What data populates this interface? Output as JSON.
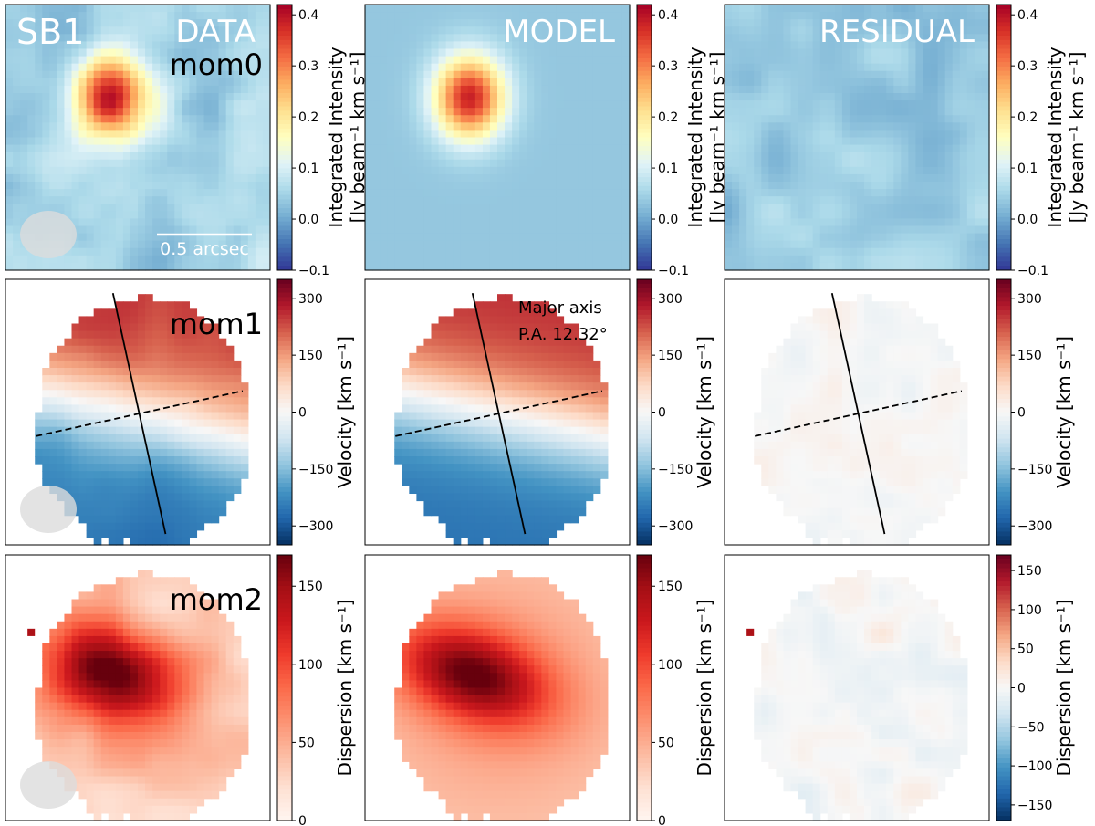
{
  "chart_data": {
    "type": "heatmap",
    "source_label": "SB1",
    "columns": [
      "DATA",
      "MODEL",
      "RESIDUAL"
    ],
    "rows": [
      {
        "moment": "mom0",
        "colorbar_label_line1": "Integrated Intensity",
        "colorbar_label_line2": "[Jy beam⁻¹ km s⁻¹]",
        "colormap": "RdYlBu_r",
        "vmin": -0.1,
        "vmax": 0.42,
        "ticks": [
          -0.1,
          0.0,
          0.1,
          0.2,
          0.3,
          0.4
        ],
        "tick_labels": [
          "−0.1",
          "0.0",
          "0.1",
          "0.2",
          "0.3",
          "0.4"
        ],
        "data_peak": 0.37,
        "model_peak": 0.35,
        "residual_range": [
          -0.05,
          0.05
        ],
        "scale_bar_label": "0.5 arcsec"
      },
      {
        "moment": "mom1",
        "colorbar_label": "Velocity [km s⁻¹]",
        "colormap": "RdBu_r",
        "vmin": -350,
        "vmax": 350,
        "ticks": [
          -300,
          -150,
          0,
          150,
          300
        ],
        "tick_labels": [
          "−300",
          "−150",
          "0",
          "150",
          "300"
        ],
        "velocity_amplitude": 260,
        "residual_range": [
          -40,
          40
        ],
        "major_axis_label_line1": "Major axis",
        "major_axis_label_line2": "P.A. 12.32°",
        "position_angle_deg": 12.32
      },
      {
        "moment": "mom2",
        "colorbar_label": "Dispersion [km s⁻¹]",
        "colormap": "Reds",
        "vmin": 0,
        "vmax": 170,
        "ticks": [
          0,
          50,
          100,
          150
        ],
        "tick_labels": [
          "0",
          "50",
          "100",
          "150"
        ],
        "data_peak": 160,
        "model_peak": 150,
        "residual_colormap": "RdBu_r",
        "residual_vmin": -170,
        "residual_vmax": 170,
        "residual_ticks": [
          -150,
          -100,
          -50,
          0,
          50,
          100,
          150
        ],
        "residual_tick_labels": [
          "−150",
          "−100",
          "−50",
          "0",
          "50",
          "100",
          "150"
        ]
      }
    ]
  }
}
